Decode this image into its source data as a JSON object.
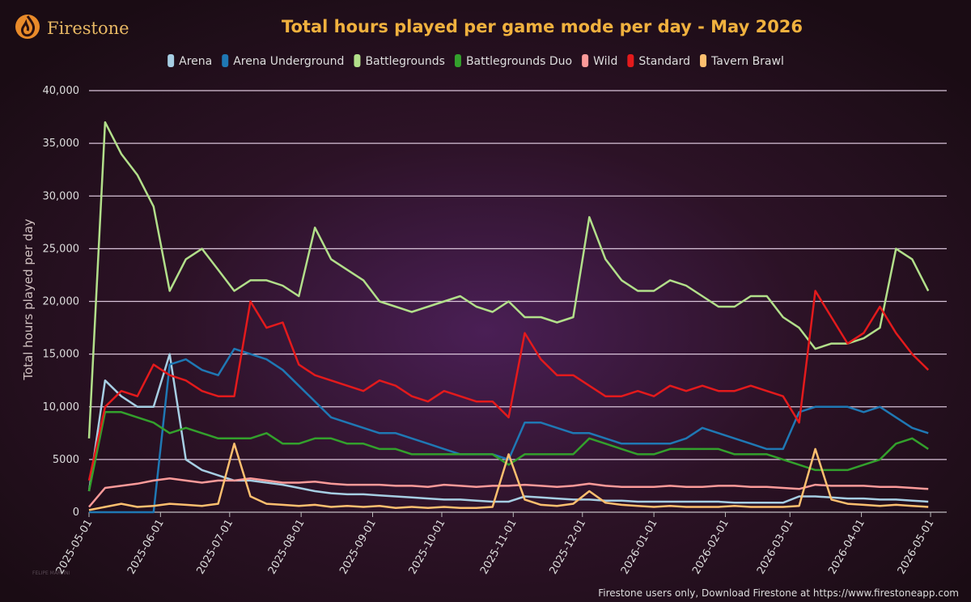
{
  "chart_data": {
    "type": "line",
    "brand": "Firestone",
    "title": "Total hours played per game mode per day - May 2026",
    "ylabel": "Total hours played per day",
    "source": "Firestone users only, Download Firestone at https://www.firestoneapp.com",
    "watermark": "FELIPE MARTINI",
    "x": [
      "2025-05-01",
      "2025-05-08",
      "2025-05-15",
      "2025-05-22",
      "2025-05-29",
      "2025-06-05",
      "2025-06-12",
      "2025-06-19",
      "2025-06-26",
      "2025-07-03",
      "2025-07-10",
      "2025-07-17",
      "2025-07-24",
      "2025-07-31",
      "2025-08-07",
      "2025-08-14",
      "2025-08-21",
      "2025-08-28",
      "2025-09-04",
      "2025-09-11",
      "2025-09-18",
      "2025-09-25",
      "2025-10-02",
      "2025-10-09",
      "2025-10-16",
      "2025-10-23",
      "2025-10-30",
      "2025-11-06",
      "2025-11-13",
      "2025-11-20",
      "2025-11-27",
      "2025-12-04",
      "2025-12-11",
      "2025-12-18",
      "2025-12-25",
      "2026-01-01",
      "2026-01-08",
      "2026-01-15",
      "2026-01-22",
      "2026-01-29",
      "2026-02-05",
      "2026-02-12",
      "2026-02-19",
      "2026-02-26",
      "2026-03-05",
      "2026-03-12",
      "2026-03-19",
      "2026-03-26",
      "2026-04-02",
      "2026-04-09",
      "2026-04-16",
      "2026-04-23",
      "2026-04-30"
    ],
    "series": [
      {
        "name": "Arena",
        "color": "#a6cee3",
        "values": [
          2000,
          12500,
          11000,
          10000,
          10000,
          15000,
          5000,
          4000,
          3500,
          3000,
          3000,
          2800,
          2600,
          2300,
          2000,
          1800,
          1700,
          1700,
          1600,
          1500,
          1400,
          1300,
          1200,
          1200,
          1100,
          1000,
          1000,
          1500,
          1400,
          1300,
          1200,
          1200,
          1100,
          1100,
          1000,
          1000,
          1000,
          1000,
          1000,
          1000,
          900,
          900,
          900,
          900,
          1500,
          1500,
          1400,
          1300,
          1300,
          1200,
          1200,
          1100,
          1000
        ]
      },
      {
        "name": "Arena Underground",
        "color": "#1f78b4",
        "values": [
          0,
          0,
          0,
          0,
          0,
          14000,
          14500,
          13500,
          13000,
          15500,
          15000,
          14500,
          13500,
          12000,
          10500,
          9000,
          8500,
          8000,
          7500,
          7500,
          7000,
          6500,
          6000,
          5500,
          5500,
          5500,
          5000,
          8500,
          8500,
          8000,
          7500,
          7500,
          7000,
          6500,
          6500,
          6500,
          6500,
          7000,
          8000,
          7500,
          7000,
          6500,
          6000,
          6000,
          9500,
          10000,
          10000,
          10000,
          9500,
          10000,
          9000,
          8000,
          7500
        ]
      },
      {
        "name": "Battlegrounds",
        "color": "#b2df8a",
        "values": [
          7000,
          37000,
          34000,
          32000,
          29000,
          21000,
          24000,
          25000,
          23000,
          21000,
          22000,
          22000,
          21500,
          20500,
          27000,
          24000,
          23000,
          22000,
          20000,
          19500,
          19000,
          19500,
          20000,
          20500,
          19500,
          19000,
          20000,
          18500,
          18500,
          18000,
          18500,
          28000,
          24000,
          22000,
          21000,
          21000,
          22000,
          21500,
          20500,
          19500,
          19500,
          20500,
          20500,
          18500,
          17500,
          15500,
          16000,
          16000,
          16500,
          17500,
          25000,
          24000,
          21000
        ]
      },
      {
        "name": "Battlegrounds Duo",
        "color": "#33a02c",
        "values": [
          2000,
          9500,
          9500,
          9000,
          8500,
          7500,
          8000,
          7500,
          7000,
          7000,
          7000,
          7500,
          6500,
          6500,
          7000,
          7000,
          6500,
          6500,
          6000,
          6000,
          5500,
          5500,
          5500,
          5500,
          5500,
          5500,
          4500,
          5500,
          5500,
          5500,
          5500,
          7000,
          6500,
          6000,
          5500,
          5500,
          6000,
          6000,
          6000,
          6000,
          5500,
          5500,
          5500,
          5000,
          4500,
          4000,
          4000,
          4000,
          4500,
          5000,
          6500,
          7000,
          6000
        ]
      },
      {
        "name": "Wild",
        "color": "#fb9a99",
        "values": [
          500,
          2300,
          2500,
          2700,
          3000,
          3200,
          3000,
          2800,
          3000,
          3000,
          3200,
          3000,
          2800,
          2800,
          2900,
          2700,
          2600,
          2600,
          2600,
          2500,
          2500,
          2400,
          2600,
          2500,
          2400,
          2500,
          2500,
          2600,
          2500,
          2400,
          2500,
          2700,
          2500,
          2400,
          2400,
          2400,
          2500,
          2400,
          2400,
          2500,
          2500,
          2400,
          2400,
          2300,
          2200,
          2600,
          2500,
          2500,
          2500,
          2400,
          2400,
          2300,
          2200
        ]
      },
      {
        "name": "Standard",
        "color": "#e31a1c",
        "values": [
          3000,
          10000,
          11500,
          11000,
          14000,
          13000,
          12500,
          11500,
          11000,
          11000,
          20000,
          17500,
          18000,
          14000,
          13000,
          12500,
          12000,
          11500,
          12500,
          12000,
          11000,
          10500,
          11500,
          11000,
          10500,
          10500,
          9000,
          17000,
          14500,
          13000,
          13000,
          12000,
          11000,
          11000,
          11500,
          11000,
          12000,
          11500,
          12000,
          11500,
          11500,
          12000,
          11500,
          11000,
          8500,
          21000,
          18500,
          16000,
          17000,
          19500,
          17000,
          15000,
          13500
        ]
      },
      {
        "name": "Tavern Brawl",
        "color": "#fdbf6f",
        "values": [
          200,
          500,
          800,
          500,
          600,
          800,
          700,
          600,
          800,
          6500,
          1500,
          800,
          700,
          600,
          700,
          500,
          600,
          500,
          600,
          400,
          500,
          400,
          500,
          400,
          400,
          500,
          5500,
          1200,
          700,
          600,
          800,
          2000,
          900,
          700,
          600,
          500,
          600,
          500,
          500,
          500,
          600,
          500,
          500,
          500,
          600,
          6000,
          1200,
          800,
          700,
          600,
          700,
          600,
          500
        ]
      }
    ],
    "xlim": [
      "2025-05-01",
      "2026-05-08"
    ],
    "xticks": [
      "2025-05-01",
      "2025-06-01",
      "2025-07-01",
      "2025-08-01",
      "2025-09-01",
      "2025-10-01",
      "2025-11-01",
      "2025-12-01",
      "2026-01-01",
      "2026-02-01",
      "2026-03-01",
      "2026-04-01",
      "2026-05-01"
    ],
    "ylim": [
      0,
      40000
    ],
    "yticks": [
      0,
      5000,
      {
        "value": 10000,
        "label": "10,000"
      },
      {
        "value": 15000,
        "label": "15,000"
      },
      {
        "value": 20000,
        "label": "20,000"
      },
      {
        "value": 25000,
        "label": "25,000"
      },
      {
        "value": 30000,
        "label": "30,000"
      },
      {
        "value": 35000,
        "label": "35,000"
      },
      {
        "value": 40000,
        "label": "40,000"
      }
    ],
    "grid": true,
    "legend": "top"
  }
}
